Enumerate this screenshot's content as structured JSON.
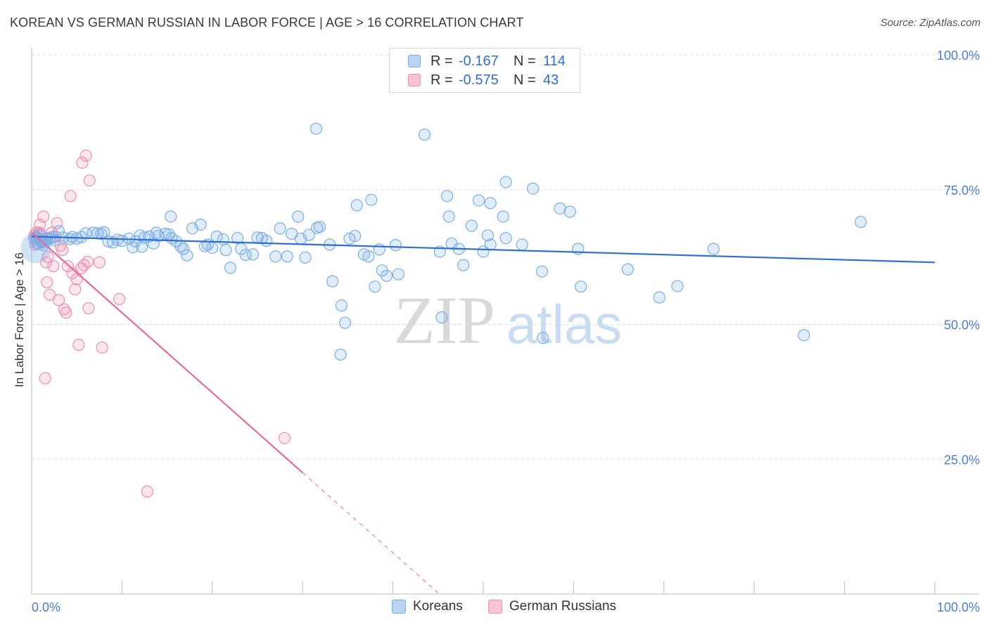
{
  "header": {
    "title": "KOREAN VS GERMAN RUSSIAN IN LABOR FORCE | AGE > 16 CORRELATION CHART",
    "source": "Source: ZipAtlas.com"
  },
  "watermark": {
    "zip": "ZIP",
    "atlas": "atlas"
  },
  "legend": {
    "rows": [
      {
        "r_label": "R =",
        "r_value": "-0.167",
        "n_label": "N =",
        "n_value": "114",
        "color": "#7aaee8",
        "fill": "#b9d3f3"
      },
      {
        "r_label": "R =",
        "r_value": "-0.575",
        "n_label": "N =",
        "n_value": "43",
        "color": "#ee8fb0",
        "fill": "#f7c4d5"
      }
    ]
  },
  "bottom_legend": {
    "series1": "Koreans",
    "series2": "German Russians"
  },
  "colors": {
    "blue": "#2f6fcf",
    "blue_point": "#7aaee8",
    "pink_line": "#e8699a",
    "pink_point": "#ee8fb0",
    "grid": "#dddddd",
    "tick_label": "#4a7fd6"
  },
  "chart_data": {
    "type": "scatter",
    "title": "KOREAN VS GERMAN RUSSIAN IN LABOR FORCE | AGE > 16 CORRELATION CHART",
    "xlabel": "",
    "ylabel": "In Labor Force | Age > 16",
    "xlim": [
      0,
      100
    ],
    "ylim": [
      0,
      100
    ],
    "x_tick_labels": [
      "0.0%",
      "100.0%"
    ],
    "y_ticks": [
      25,
      50,
      75,
      100
    ],
    "y_tick_labels": [
      "25.0%",
      "50.0%",
      "75.0%",
      "100.0%"
    ],
    "series": [
      {
        "name": "Koreans",
        "r": -0.167,
        "n": 114,
        "trend": {
          "x": [
            0,
            100
          ],
          "y": [
            66.3,
            61.5
          ],
          "style": "solid"
        },
        "points": [
          [
            0.3,
            65.8
          ],
          [
            0.5,
            66.2
          ],
          [
            0.6,
            65.0
          ],
          [
            0.8,
            66.5
          ],
          [
            1.0,
            65.5
          ],
          [
            1.2,
            65.2
          ],
          [
            1.3,
            64.7
          ],
          [
            1.5,
            65.3
          ],
          [
            1.7,
            66.0
          ],
          [
            2.0,
            65.9
          ],
          [
            2.3,
            66.2
          ],
          [
            2.6,
            65.6
          ],
          [
            3.0,
            67.3
          ],
          [
            3.5,
            66.1
          ],
          [
            4.2,
            65.8
          ],
          [
            4.5,
            66.2
          ],
          [
            5.0,
            65.9
          ],
          [
            5.5,
            66.2
          ],
          [
            6.0,
            66.9
          ],
          [
            6.8,
            67.0
          ],
          [
            7.3,
            66.9
          ],
          [
            7.7,
            66.8
          ],
          [
            8.0,
            67.1
          ],
          [
            8.5,
            65.4
          ],
          [
            9.0,
            65.2
          ],
          [
            9.5,
            65.7
          ],
          [
            10.0,
            65.5
          ],
          [
            10.8,
            65.9
          ],
          [
            11.5,
            65.4
          ],
          [
            12.0,
            66.5
          ],
          [
            12.5,
            66.1
          ],
          [
            11.2,
            64.3
          ],
          [
            12.2,
            64.4
          ],
          [
            13.0,
            66.3
          ],
          [
            13.5,
            65.0
          ],
          [
            13.8,
            67.0
          ],
          [
            14.0,
            66.4
          ],
          [
            14.8,
            66.8
          ],
          [
            15.2,
            66.7
          ],
          [
            15.5,
            66.0
          ],
          [
            16.0,
            65.4
          ],
          [
            15.4,
            70.0
          ],
          [
            16.5,
            64.5
          ],
          [
            16.8,
            64.0
          ],
          [
            17.2,
            62.8
          ],
          [
            17.8,
            67.8
          ],
          [
            18.7,
            68.5
          ],
          [
            19.2,
            64.5
          ],
          [
            19.5,
            64.8
          ],
          [
            20.0,
            64.2
          ],
          [
            20.5,
            66.3
          ],
          [
            21.2,
            65.8
          ],
          [
            21.5,
            63.8
          ],
          [
            22.0,
            60.5
          ],
          [
            22.8,
            66.0
          ],
          [
            23.2,
            64.0
          ],
          [
            23.7,
            62.9
          ],
          [
            24.5,
            63.0
          ],
          [
            25.0,
            66.1
          ],
          [
            25.5,
            66.0
          ],
          [
            26.0,
            65.5
          ],
          [
            27.0,
            62.6
          ],
          [
            27.5,
            67.8
          ],
          [
            28.3,
            62.6
          ],
          [
            28.8,
            66.8
          ],
          [
            29.5,
            70.0
          ],
          [
            29.8,
            65.9
          ],
          [
            30.3,
            62.4
          ],
          [
            30.7,
            66.6
          ],
          [
            31.6,
            67.9
          ],
          [
            31.9,
            68.1
          ],
          [
            31.5,
            86.3
          ],
          [
            33.0,
            64.8
          ],
          [
            33.3,
            58.0
          ],
          [
            34.3,
            53.5
          ],
          [
            34.7,
            50.3
          ],
          [
            34.2,
            44.4
          ],
          [
            35.2,
            65.9
          ],
          [
            35.8,
            66.4
          ],
          [
            36.0,
            72.1
          ],
          [
            36.8,
            63.0
          ],
          [
            37.6,
            73.1
          ],
          [
            37.3,
            62.6
          ],
          [
            38.0,
            57.0
          ],
          [
            38.5,
            63.9
          ],
          [
            38.8,
            60.0
          ],
          [
            39.3,
            59.0
          ],
          [
            40.3,
            64.7
          ],
          [
            40.6,
            59.3
          ],
          [
            43.5,
            85.2
          ],
          [
            45.2,
            63.5
          ],
          [
            45.4,
            51.3
          ],
          [
            46.0,
            73.8
          ],
          [
            46.2,
            70.0
          ],
          [
            46.5,
            65.0
          ],
          [
            47.3,
            64.0
          ],
          [
            47.8,
            61.0
          ],
          [
            48.7,
            68.3
          ],
          [
            50.0,
            63.5
          ],
          [
            50.5,
            66.5
          ],
          [
            50.8,
            64.8
          ],
          [
            49.5,
            73.0
          ],
          [
            50.8,
            72.5
          ],
          [
            52.2,
            70.0
          ],
          [
            52.5,
            66.0
          ],
          [
            52.5,
            76.4
          ],
          [
            54.3,
            64.8
          ],
          [
            55.5,
            75.2
          ],
          [
            56.5,
            59.8
          ],
          [
            56.6,
            47.5
          ],
          [
            58.5,
            71.5
          ],
          [
            59.6,
            70.9
          ],
          [
            60.5,
            64.0
          ],
          [
            60.8,
            57.0
          ],
          [
            66.0,
            60.2
          ],
          [
            69.5,
            55.0
          ],
          [
            71.5,
            57.1
          ],
          [
            75.5,
            64.0
          ],
          [
            85.5,
            48.0
          ],
          [
            91.8,
            69.0
          ]
        ]
      },
      {
        "name": "German Russians",
        "r": -0.575,
        "n": 43,
        "trend": {
          "x": [
            0,
            30
          ],
          "y": [
            67.0,
            22.5
          ],
          "dashed_to": {
            "x": 45,
            "y": 0.2
          },
          "style": "solid+dashed"
        },
        "points": [
          [
            0.3,
            66.5
          ],
          [
            0.5,
            67.0
          ],
          [
            0.6,
            66.0
          ],
          [
            0.7,
            65.0
          ],
          [
            0.8,
            67.0
          ],
          [
            0.9,
            68.5
          ],
          [
            1.0,
            66.8
          ],
          [
            1.1,
            65.5
          ],
          [
            1.3,
            70.0
          ],
          [
            1.5,
            65.8
          ],
          [
            1.6,
            61.5
          ],
          [
            1.7,
            57.8
          ],
          [
            1.8,
            62.5
          ],
          [
            2.0,
            55.5
          ],
          [
            2.2,
            67.0
          ],
          [
            2.4,
            60.8
          ],
          [
            2.6,
            66.3
          ],
          [
            2.8,
            68.8
          ],
          [
            3.0,
            54.5
          ],
          [
            3.2,
            64.6
          ],
          [
            3.4,
            63.8
          ],
          [
            3.6,
            52.8
          ],
          [
            3.8,
            52.2
          ],
          [
            4.0,
            60.8
          ],
          [
            4.3,
            73.8
          ],
          [
            4.5,
            59.5
          ],
          [
            4.8,
            56.5
          ],
          [
            5.0,
            58.4
          ],
          [
            5.2,
            46.2
          ],
          [
            5.5,
            60.4
          ],
          [
            5.6,
            80.0
          ],
          [
            5.8,
            61.0
          ],
          [
            6.0,
            81.3
          ],
          [
            6.3,
            53.0
          ],
          [
            6.4,
            76.7
          ],
          [
            6.2,
            61.6
          ],
          [
            7.5,
            61.5
          ],
          [
            7.8,
            45.7
          ],
          [
            9.7,
            54.7
          ],
          [
            12.8,
            19.0
          ],
          [
            28.0,
            28.9
          ],
          [
            1.5,
            40.0
          ],
          [
            0.4,
            64.8
          ]
        ]
      }
    ]
  }
}
